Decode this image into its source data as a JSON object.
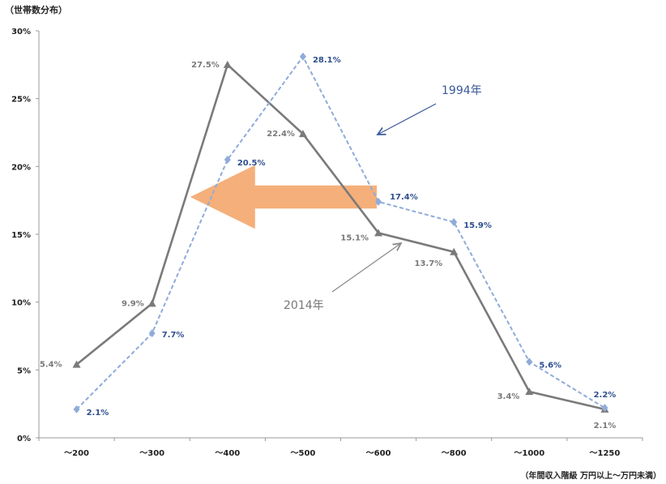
{
  "chart_data": {
    "type": "line",
    "title": "",
    "ylabel": "（世帯数分布）",
    "xlabel": "（年間収入階級 万円以上～万円未満）",
    "categories": [
      "～200",
      "～300",
      "～400",
      "～500",
      "～600",
      "～800",
      "～1000",
      "～1250"
    ],
    "y_ticks": [
      "0%",
      "5%",
      "10%",
      "15%",
      "20%",
      "25%",
      "30%"
    ],
    "ylim": [
      0,
      30
    ],
    "grid": false,
    "series": [
      {
        "name": "2014年",
        "values": [
          5.4,
          9.9,
          27.5,
          22.4,
          15.1,
          13.7,
          3.4,
          2.1
        ],
        "labels": [
          "5.4%",
          "9.9%",
          "27.5%",
          "22.4%",
          "15.1%",
          "13.7%",
          "3.4%",
          "2.1%"
        ],
        "color": "#7a7a7a",
        "label_color": "#7a7a7a",
        "marker": "triangle",
        "dash": false
      },
      {
        "name": "1994年",
        "values": [
          2.1,
          7.7,
          20.5,
          28.1,
          17.4,
          15.9,
          5.6,
          2.2
        ],
        "labels": [
          "2.1%",
          "7.7%",
          "20.5%",
          "28.1%",
          "17.4%",
          "15.9%",
          "5.6%",
          "2.2%"
        ],
        "color": "#8fabd9",
        "label_color": "#2f4f8f",
        "marker": "diamond",
        "dash": true
      }
    ],
    "annotations": {
      "arrow_color": "#f4a86f",
      "series_tag_1994_color": "#3a5a9a",
      "series_tag_2014_color": "#777777"
    }
  }
}
